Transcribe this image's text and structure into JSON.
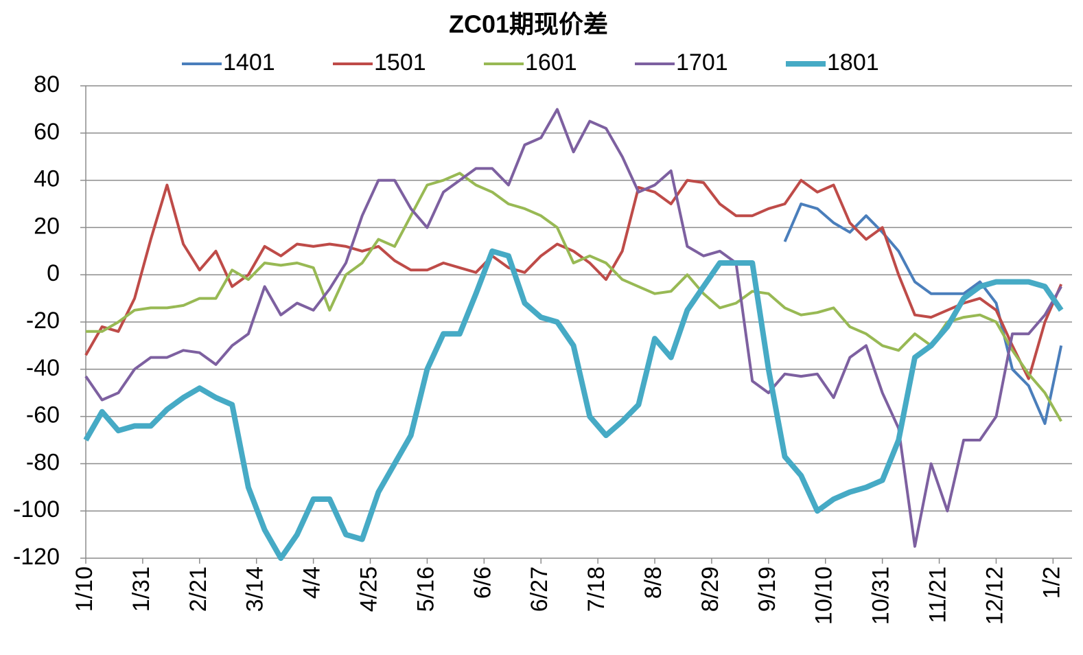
{
  "chart_data": {
    "type": "line",
    "title": "ZC01期现价差",
    "legend": "top",
    "grid": true,
    "x": [
      0,
      6,
      12,
      18,
      24,
      30,
      36,
      42,
      48,
      54,
      60,
      66,
      72,
      78,
      84,
      90,
      96,
      102,
      108,
      114,
      120,
      126,
      132,
      138,
      144,
      150,
      156,
      162,
      168,
      174,
      180,
      186,
      192,
      198,
      204,
      210,
      216,
      222,
      228,
      234,
      240,
      246,
      252,
      258,
      264,
      270,
      276,
      282,
      288,
      294,
      300,
      306,
      312,
      318,
      324,
      330,
      336,
      342,
      348,
      354,
      360
    ],
    "xlim": [
      0,
      364
    ],
    "xticks": [
      {
        "value": 0,
        "label": "1/10"
      },
      {
        "value": 21,
        "label": "1/31"
      },
      {
        "value": 42,
        "label": "2/21"
      },
      {
        "value": 63,
        "label": "3/14"
      },
      {
        "value": 84,
        "label": "4/4"
      },
      {
        "value": 105,
        "label": "4/25"
      },
      {
        "value": 126,
        "label": "5/16"
      },
      {
        "value": 147,
        "label": "6/6"
      },
      {
        "value": 168,
        "label": "6/27"
      },
      {
        "value": 189,
        "label": "7/18"
      },
      {
        "value": 210,
        "label": "8/8"
      },
      {
        "value": 231,
        "label": "8/29"
      },
      {
        "value": 252,
        "label": "9/19"
      },
      {
        "value": 273,
        "label": "10/10"
      },
      {
        "value": 294,
        "label": "10/31"
      },
      {
        "value": 315,
        "label": "11/21"
      },
      {
        "value": 336,
        "label": "12/12"
      },
      {
        "value": 357,
        "label": "1/2"
      }
    ],
    "ylim": [
      -120,
      80
    ],
    "yticks": [
      -120,
      -100,
      -80,
      -60,
      -40,
      -20,
      0,
      20,
      40,
      60,
      80
    ],
    "series": [
      {
        "name": "1401",
        "color": "#4a7ebb",
        "values": [
          null,
          null,
          null,
          null,
          null,
          null,
          null,
          null,
          null,
          null,
          null,
          null,
          null,
          null,
          null,
          null,
          null,
          null,
          null,
          null,
          null,
          null,
          null,
          null,
          null,
          null,
          null,
          null,
          null,
          null,
          null,
          null,
          null,
          null,
          null,
          null,
          null,
          null,
          null,
          null,
          null,
          null,
          null,
          14,
          30,
          28,
          22,
          18,
          25,
          18,
          10,
          -3,
          -8,
          -8,
          -8,
          -3,
          -12,
          -40,
          -47,
          -63,
          -30
        ]
      },
      {
        "name": "1501",
        "color": "#be4b48",
        "values": [
          -34,
          -22,
          -24,
          -10,
          15,
          38,
          13,
          2,
          10,
          -5,
          0,
          12,
          8,
          13,
          12,
          13,
          12,
          10,
          12,
          6,
          2,
          2,
          5,
          3,
          1,
          8,
          3,
          1,
          8,
          13,
          10,
          5,
          -2,
          10,
          37,
          35,
          30,
          40,
          39,
          30,
          25,
          25,
          28,
          30,
          40,
          35,
          38,
          22,
          15,
          20,
          0,
          -17,
          -18,
          -15,
          -12,
          -10,
          -15,
          -30,
          -44,
          -20,
          -4
        ]
      },
      {
        "name": "1601",
        "color": "#98b954",
        "values": [
          -24,
          -24,
          -20,
          -15,
          -14,
          -14,
          -13,
          -10,
          -10,
          2,
          -2,
          5,
          4,
          5,
          3,
          -15,
          0,
          5,
          15,
          12,
          25,
          38,
          40,
          43,
          38,
          35,
          30,
          28,
          25,
          20,
          5,
          8,
          5,
          -2,
          -5,
          -8,
          -7,
          0,
          -8,
          -14,
          -12,
          -7,
          -8,
          -14,
          -17,
          -16,
          -14,
          -22,
          -25,
          -30,
          -32,
          -25,
          -30,
          -20,
          -18,
          -17,
          -20,
          -32,
          -42,
          -50,
          -62
        ]
      },
      {
        "name": "1701",
        "color": "#7d60a0",
        "values": [
          -43,
          -53,
          -50,
          -40,
          -35,
          -35,
          -32,
          -33,
          -38,
          -30,
          -25,
          -5,
          -17,
          -12,
          -15,
          -6,
          5,
          25,
          40,
          40,
          28,
          20,
          35,
          40,
          45,
          45,
          38,
          55,
          58,
          70,
          52,
          65,
          62,
          50,
          35,
          38,
          44,
          12,
          8,
          10,
          5,
          -45,
          -50,
          -42,
          -43,
          -42,
          -52,
          -35,
          -30,
          -50,
          -65,
          -115,
          -80,
          -100,
          -70,
          -70,
          -60,
          -25,
          -25,
          -17,
          -5
        ]
      },
      {
        "name": "1801",
        "color": "#46aac5",
        "values": [
          -70,
          -58,
          -66,
          -64,
          -64,
          -57,
          -52,
          -48,
          -52,
          -55,
          -90,
          -108,
          -120,
          -110,
          -95,
          -95,
          -110,
          -112,
          -92,
          -80,
          -68,
          -40,
          -25,
          -25,
          -8,
          10,
          8,
          -12,
          -18,
          -20,
          -30,
          -60,
          -68,
          -62,
          -55,
          -27,
          -35,
          -15,
          -5,
          5,
          5,
          5,
          -40,
          -77,
          -85,
          -100,
          -95,
          -92,
          -90,
          -87,
          -70,
          -35,
          -30,
          -22,
          -10,
          -5,
          -3,
          -3,
          -3,
          -5,
          -15
        ]
      }
    ]
  }
}
